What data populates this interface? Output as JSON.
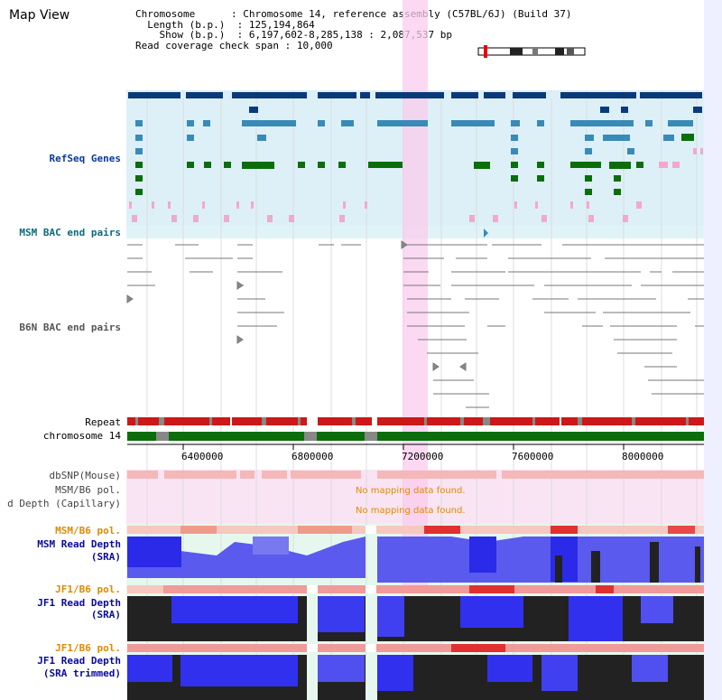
{
  "view_title": "Map View",
  "info": {
    "chromosome_key": "Chromosome",
    "chromosome_value": "Chromosome 14, reference assembly (C57BL/6J) (Build 37)",
    "length_key": "Length (b.p.)",
    "length_value": "125,194,864",
    "show_key": "Show (b.p.)",
    "show_value": "6,197,602-8,285,138 : 2,087,537 bp",
    "coverage_key": "Read coverage check span",
    "coverage_value": "10,000"
  },
  "tracks": {
    "refseq": "RefSeq Genes",
    "msm_bac": "MSM BAC end pairs",
    "b6n_bac": "B6N BAC end pairs",
    "repeat": "Repeat",
    "chromosome": "chromosome 14",
    "dbsnp": "dbSNP(Mouse)",
    "msm_b6_pol_1": "MSM/B6 pol.",
    "read_depth_capillary": "d Depth (Capillary)",
    "msm_b6_pol_2": "MSM/B6 pol.",
    "msm_read_depth": "MSM Read Depth",
    "msm_read_depth_sub": "(SRA)",
    "jf1_b6_pol_1": "JF1/B6 pol.",
    "jf1_read_depth": "JF1 Read Depth",
    "jf1_read_depth_sub": "(SRA)",
    "jf1_b6_pol_2": "JF1/B6 pol.",
    "jf1_read_depth_trim": "JF1 Read Depth",
    "jf1_read_depth_trim_sub": "(SRA trimmed)"
  },
  "messages": {
    "no_data_1": "No mapping data found.",
    "no_data_2": "No mapping data found."
  },
  "scale": {
    "ticks": [
      "6400000",
      "6800000",
      "7200000",
      "7600000",
      "8000000"
    ]
  },
  "colors": {
    "refseq_bg": "#ddf0f8",
    "gene_dark": "#0a3a7a",
    "gene_mid": "#3a8ab8",
    "gene_green": "#0b6e0b",
    "highlight": "#f9ccee",
    "chromosome": "#0b6e0b",
    "pol_orange": "#e08a00",
    "depth_blue": "#1a1aee",
    "depth_black": "#222222"
  }
}
